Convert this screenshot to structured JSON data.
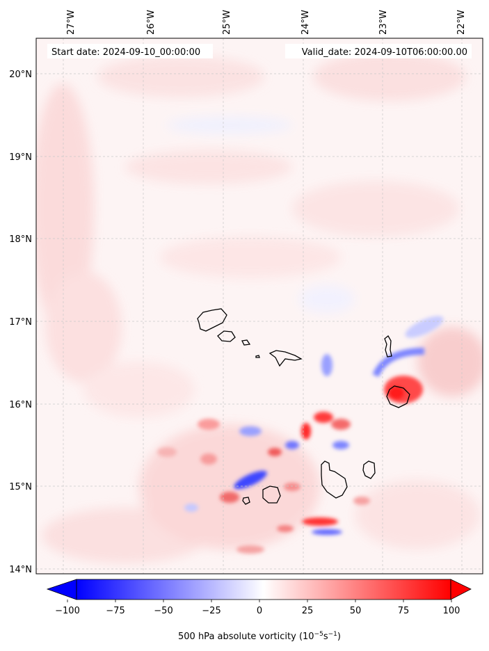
{
  "map": {
    "start_date": "Start date: 2024-09-10_00:00:00",
    "valid_date": "Valid_date: 2024-09-10T06:00:00.00",
    "lon_labels": [
      "27°W",
      "26°W",
      "25°W",
      "24°W",
      "23°W",
      "22°W"
    ],
    "lat_labels": [
      "20°N",
      "19°N",
      "18°N",
      "17°N",
      "16°N",
      "15°N",
      "14°N"
    ],
    "gridlines": true,
    "field": "500 hPa absolute vorticity"
  },
  "colorbar": {
    "label_prefix": "500 hPa absolute vorticity (10",
    "label_exp1": "−5",
    "label_mid": "s",
    "label_exp2": "−1",
    "label_suffix": ")",
    "ticks": [
      "−100",
      "−75",
      "−50",
      "−25",
      "0",
      "25",
      "50",
      "75",
      "100"
    ],
    "vmin": -100,
    "vmax": 100,
    "extend": "both",
    "color_low": "#0000ff",
    "color_mid": "#ffffff",
    "color_high": "#ff0000"
  }
}
